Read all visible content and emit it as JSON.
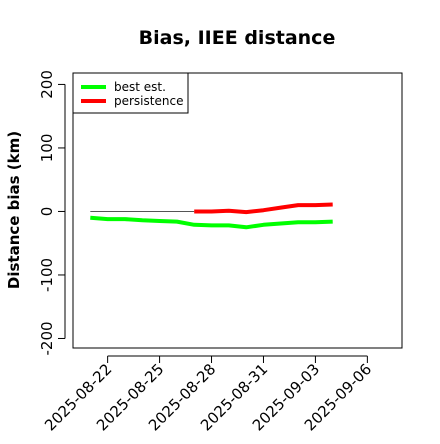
{
  "chart_data": {
    "type": "line",
    "title": "Bias, IIEE distance",
    "xlabel": "",
    "ylabel": "Distance bias (km)",
    "x_ticks": [
      "2025-08-22",
      "2025-08-25",
      "2025-08-28",
      "2025-08-31",
      "2025-09-03",
      "2025-09-06"
    ],
    "y_ticks": [
      -200,
      -100,
      0,
      100,
      200
    ],
    "xlim": [
      "2025-08-20",
      "2025-09-08"
    ],
    "ylim": [
      -215,
      218
    ],
    "legend_position": "top-left",
    "grid": false,
    "reference_line": {
      "y": 0,
      "from": "2025-08-21",
      "to": "2025-08-27",
      "color": "#555555"
    },
    "series": [
      {
        "name": "best est.",
        "color": "#00ff00",
        "points": [
          {
            "x": "2025-08-21",
            "y": -10
          },
          {
            "x": "2025-08-22",
            "y": -12
          },
          {
            "x": "2025-08-23",
            "y": -12
          },
          {
            "x": "2025-08-24",
            "y": -14
          },
          {
            "x": "2025-08-25",
            "y": -15
          },
          {
            "x": "2025-08-26",
            "y": -16
          },
          {
            "x": "2025-08-27",
            "y": -21
          },
          {
            "x": "2025-08-28",
            "y": -22
          },
          {
            "x": "2025-08-29",
            "y": -22
          },
          {
            "x": "2025-08-30",
            "y": -25
          },
          {
            "x": "2025-08-31",
            "y": -21
          },
          {
            "x": "2025-09-01",
            "y": -19
          },
          {
            "x": "2025-09-02",
            "y": -17
          },
          {
            "x": "2025-09-03",
            "y": -17
          },
          {
            "x": "2025-09-04",
            "y": -16
          }
        ]
      },
      {
        "name": "persistence",
        "color": "#ff0000",
        "points": [
          {
            "x": "2025-08-27",
            "y": 0
          },
          {
            "x": "2025-08-28",
            "y": 0
          },
          {
            "x": "2025-08-29",
            "y": 1
          },
          {
            "x": "2025-08-30",
            "y": -1
          },
          {
            "x": "2025-08-31",
            "y": 2
          },
          {
            "x": "2025-09-01",
            "y": 6
          },
          {
            "x": "2025-09-02",
            "y": 10
          },
          {
            "x": "2025-09-03",
            "y": 10
          },
          {
            "x": "2025-09-04",
            "y": 11
          }
        ]
      }
    ]
  }
}
